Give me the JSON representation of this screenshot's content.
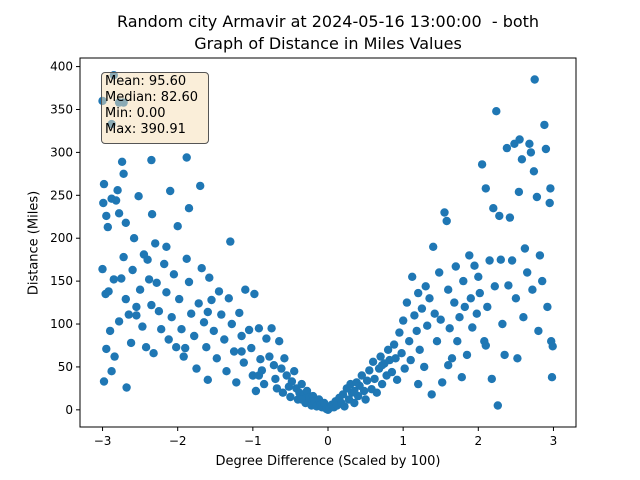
{
  "title_line1": "Random city Armavir at 2024-05-16 13:00:00  - both",
  "title_line2": "Graph of Distance in Miles Values",
  "stats": {
    "mean": "Mean: 95.60",
    "median": "Median: 82.60",
    "min": "Min: 0.00",
    "max": "Max: 390.91"
  },
  "colors": {
    "points": "#1f77b4",
    "statbox": "#f5deb3"
  },
  "chart_data": {
    "type": "scatter",
    "title": "Random city Armavir at 2024-05-16 13:00:00  - both\nGraph of Distance in Miles Values",
    "xlabel": "Degree Difference (Scaled by 100)",
    "ylabel": "Distance (Miles)",
    "xlim": [
      -3.3,
      3.3
    ],
    "ylim": [
      -20,
      410
    ],
    "xticks": [
      -3,
      -2,
      -1,
      0,
      1,
      2,
      3
    ],
    "xtick_labels": [
      "−3",
      "−2",
      "−1",
      "0",
      "1",
      "2",
      "3"
    ],
    "yticks": [
      0,
      50,
      100,
      150,
      200,
      250,
      300,
      350,
      400
    ],
    "ytick_labels": [
      "0",
      "50",
      "100",
      "150",
      "200",
      "250",
      "300",
      "350",
      "400"
    ],
    "grid": false,
    "points": [
      [
        -3.0,
        360
      ],
      [
        -2.85,
        390
      ],
      [
        -2.78,
        358
      ],
      [
        -2.72,
        358
      ],
      [
        -2.88,
        333
      ],
      [
        -2.98,
        263
      ],
      [
        -2.99,
        241
      ],
      [
        -2.95,
        226
      ],
      [
        -2.93,
        213
      ],
      [
        -2.88,
        246
      ],
      [
        -2.82,
        244
      ],
      [
        -2.8,
        256
      ],
      [
        -2.78,
        229
      ],
      [
        -2.74,
        289
      ],
      [
        -2.72,
        275
      ],
      [
        -2.69,
        218
      ],
      [
        -2.58,
        200
      ],
      [
        -2.52,
        249
      ],
      [
        -2.45,
        181
      ],
      [
        -2.35,
        291
      ],
      [
        -2.34,
        228
      ],
      [
        -2.3,
        194
      ],
      [
        -2.15,
        190
      ],
      [
        -2.1,
        255
      ],
      [
        -2.0,
        214
      ],
      [
        -1.88,
        294
      ],
      [
        -1.85,
        235
      ],
      [
        -1.7,
        261
      ],
      [
        -1.3,
        196
      ],
      [
        -3.0,
        164
      ],
      [
        -2.96,
        135
      ],
      [
        -2.92,
        138
      ],
      [
        -2.9,
        92
      ],
      [
        -2.95,
        71
      ],
      [
        -2.98,
        33
      ],
      [
        -2.88,
        45
      ],
      [
        -2.84,
        62
      ],
      [
        -2.78,
        103
      ],
      [
        -2.75,
        153
      ],
      [
        -2.72,
        178
      ],
      [
        -2.69,
        129
      ],
      [
        -2.65,
        111
      ],
      [
        -2.62,
        78
      ],
      [
        -2.68,
        26
      ],
      [
        -2.6,
        163
      ],
      [
        -2.55,
        110
      ],
      [
        -2.5,
        140
      ],
      [
        -2.47,
        97
      ],
      [
        -2.42,
        73
      ],
      [
        -2.4,
        175
      ],
      [
        -2.38,
        152
      ],
      [
        -2.35,
        122
      ],
      [
        -2.32,
        66
      ],
      [
        -2.28,
        148
      ],
      [
        -2.25,
        115
      ],
      [
        -2.22,
        94
      ],
      [
        -2.18,
        170
      ],
      [
        -2.15,
        137
      ],
      [
        -2.12,
        82
      ],
      [
        -2.08,
        108
      ],
      [
        -2.05,
        158
      ],
      [
        -2.02,
        73
      ],
      [
        -1.98,
        129
      ],
      [
        -1.95,
        94
      ],
      [
        -1.92,
        62
      ],
      [
        -1.88,
        176
      ],
      [
        -1.85,
        149
      ],
      [
        -1.82,
        112
      ],
      [
        -1.78,
        86
      ],
      [
        -1.75,
        48
      ],
      [
        -1.72,
        124
      ],
      [
        -1.68,
        165
      ],
      [
        -1.65,
        102
      ],
      [
        -1.62,
        73
      ],
      [
        -1.6,
        35
      ],
      [
        -1.58,
        154
      ],
      [
        -1.55,
        128
      ],
      [
        -1.52,
        92
      ],
      [
        -1.48,
        60
      ],
      [
        -1.45,
        138
      ],
      [
        -1.42,
        111
      ],
      [
        -1.38,
        82
      ],
      [
        -1.35,
        45
      ],
      [
        -1.32,
        130
      ],
      [
        -1.28,
        100
      ],
      [
        -1.25,
        68
      ],
      [
        -1.22,
        32
      ],
      [
        -1.18,
        113
      ],
      [
        -1.15,
        86
      ],
      [
        -1.12,
        55
      ],
      [
        -1.1,
        140
      ],
      [
        -1.05,
        93
      ],
      [
        -1.02,
        72
      ],
      [
        -1.0,
        40
      ],
      [
        -0.98,
        135
      ],
      [
        -0.96,
        22
      ],
      [
        -0.92,
        95
      ],
      [
        -0.9,
        59
      ],
      [
        -0.88,
        46
      ],
      [
        -0.85,
        30
      ],
      [
        -0.82,
        83
      ],
      [
        -0.78,
        62
      ],
      [
        -0.75,
        95
      ],
      [
        -0.72,
        52
      ],
      [
        -0.7,
        36
      ],
      [
        -0.68,
        25
      ],
      [
        -0.65,
        80
      ],
      [
        -0.62,
        48
      ],
      [
        -0.6,
        20
      ],
      [
        -0.58,
        60
      ],
      [
        -0.55,
        40
      ],
      [
        -0.52,
        27
      ],
      [
        -0.5,
        15
      ],
      [
        -0.48,
        33
      ],
      [
        -0.45,
        45
      ],
      [
        -0.42,
        25
      ],
      [
        -0.4,
        12
      ],
      [
        -0.38,
        20
      ],
      [
        -0.35,
        30
      ],
      [
        -0.32,
        18
      ],
      [
        -0.3,
        8
      ],
      [
        -0.28,
        22
      ],
      [
        -0.25,
        14
      ],
      [
        -0.22,
        5
      ],
      [
        -0.2,
        16
      ],
      [
        -0.18,
        10
      ],
      [
        -0.15,
        4
      ],
      [
        -0.12,
        12
      ],
      [
        -0.1,
        6
      ],
      [
        -0.08,
        3
      ],
      [
        -0.05,
        8
      ],
      [
        -0.02,
        1
      ],
      [
        0.0,
        0
      ],
      [
        0.02,
        2
      ],
      [
        0.05,
        6
      ],
      [
        0.08,
        3
      ],
      [
        0.1,
        10
      ],
      [
        0.12,
        5
      ],
      [
        0.15,
        14
      ],
      [
        0.18,
        8
      ],
      [
        0.2,
        18
      ],
      [
        0.22,
        4
      ],
      [
        0.25,
        25
      ],
      [
        0.28,
        12
      ],
      [
        0.3,
        30
      ],
      [
        0.32,
        20
      ],
      [
        0.35,
        8
      ],
      [
        0.38,
        32
      ],
      [
        0.4,
        16
      ],
      [
        0.42,
        28
      ],
      [
        0.45,
        40
      ],
      [
        0.48,
        22
      ],
      [
        0.5,
        12
      ],
      [
        0.52,
        34
      ],
      [
        0.55,
        46
      ],
      [
        0.58,
        24
      ],
      [
        0.6,
        56
      ],
      [
        0.62,
        36
      ],
      [
        0.65,
        20
      ],
      [
        0.68,
        48
      ],
      [
        0.7,
        62
      ],
      [
        0.72,
        30
      ],
      [
        0.75,
        54
      ],
      [
        0.78,
        40
      ],
      [
        0.8,
        70
      ],
      [
        0.82,
        58
      ],
      [
        0.85,
        44
      ],
      [
        0.88,
        76
      ],
      [
        0.9,
        60
      ],
      [
        0.92,
        35
      ],
      [
        0.95,
        90
      ],
      [
        0.98,
        66
      ],
      [
        1.0,
        104
      ],
      [
        1.02,
        48
      ],
      [
        1.05,
        125
      ],
      [
        1.08,
        80
      ],
      [
        1.1,
        58
      ],
      [
        1.12,
        155
      ],
      [
        1.15,
        110
      ],
      [
        1.18,
        92
      ],
      [
        1.2,
        136
      ],
      [
        1.22,
        70
      ],
      [
        1.25,
        118
      ],
      [
        1.28,
        50
      ],
      [
        1.3,
        144
      ],
      [
        1.32,
        98
      ],
      [
        1.35,
        130
      ],
      [
        1.38,
        18
      ],
      [
        1.4,
        190
      ],
      [
        1.42,
        112
      ],
      [
        1.45,
        80
      ],
      [
        1.48,
        160
      ],
      [
        1.5,
        105
      ],
      [
        1.52,
        32
      ],
      [
        1.55,
        230
      ],
      [
        1.58,
        220
      ],
      [
        1.6,
        140
      ],
      [
        1.62,
        95
      ],
      [
        1.65,
        60
      ],
      [
        1.68,
        125
      ],
      [
        1.7,
        167
      ],
      [
        1.72,
        80
      ],
      [
        1.75,
        108
      ],
      [
        1.78,
        38
      ],
      [
        1.8,
        150
      ],
      [
        1.82,
        120
      ],
      [
        1.85,
        64
      ],
      [
        1.88,
        180
      ],
      [
        1.9,
        130
      ],
      [
        1.92,
        96
      ],
      [
        1.95,
        168
      ],
      [
        1.98,
        112
      ],
      [
        2.0,
        155
      ],
      [
        2.02,
        136
      ],
      [
        2.05,
        286
      ],
      [
        2.08,
        80
      ],
      [
        2.1,
        258
      ],
      [
        2.12,
        120
      ],
      [
        2.15,
        174
      ],
      [
        2.18,
        36
      ],
      [
        2.2,
        235
      ],
      [
        2.22,
        144
      ],
      [
        2.24,
        348
      ],
      [
        2.26,
        5
      ],
      [
        2.28,
        226
      ],
      [
        2.3,
        175
      ],
      [
        2.32,
        100
      ],
      [
        2.35,
        64
      ],
      [
        2.38,
        305
      ],
      [
        2.4,
        145
      ],
      [
        2.42,
        224
      ],
      [
        2.45,
        174
      ],
      [
        2.48,
        310
      ],
      [
        2.5,
        130
      ],
      [
        2.52,
        60
      ],
      [
        2.54,
        254
      ],
      [
        2.55,
        315
      ],
      [
        2.58,
        292
      ],
      [
        2.6,
        108
      ],
      [
        2.62,
        188
      ],
      [
        2.65,
        160
      ],
      [
        2.68,
        310
      ],
      [
        2.7,
        300
      ],
      [
        2.72,
        140
      ],
      [
        2.74,
        278
      ],
      [
        2.75,
        385
      ],
      [
        2.78,
        248
      ],
      [
        2.8,
        92
      ],
      [
        2.82,
        180
      ],
      [
        2.85,
        150
      ],
      [
        2.88,
        332
      ],
      [
        2.9,
        304
      ],
      [
        2.92,
        120
      ],
      [
        2.95,
        241
      ],
      [
        2.96,
        258
      ],
      [
        2.98,
        38
      ],
      [
        2.97,
        80
      ],
      [
        2.99,
        74
      ],
      [
        -2.85,
        152
      ],
      [
        -2.55,
        120
      ],
      [
        -1.9,
        72
      ],
      [
        -1.6,
        114
      ],
      [
        -1.15,
        68
      ],
      [
        -0.92,
        40
      ],
      [
        -0.35,
        12
      ],
      [
        0.35,
        22
      ],
      [
        0.72,
        52
      ],
      [
        1.2,
        30
      ],
      [
        1.6,
        52
      ],
      [
        2.1,
        75
      ]
    ]
  }
}
